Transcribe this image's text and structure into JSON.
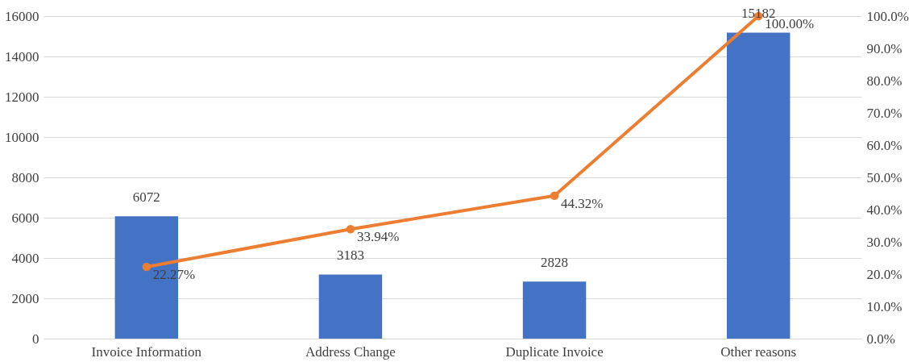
{
  "chart_data": {
    "type": "bar",
    "categories": [
      "Invoice Information",
      "Address Change",
      "Duplicate Invoice",
      "Other reasons"
    ],
    "series": [
      {
        "color": "#4472c4",
        "values": [
          6072,
          3183,
          2828,
          15182
        ],
        "value_labels": [
          "6072",
          "3183",
          "2828",
          "15182"
        ]
      },
      {
        "type": "line",
        "axis": "y2",
        "color": "#ed7d31",
        "marker": "circle",
        "values": [
          22.27,
          33.94,
          44.32,
          100.0
        ],
        "value_labels": [
          "22.27%",
          "33.94%",
          "44.32%",
          "100.00%"
        ]
      }
    ],
    "ylim": [
      0,
      16000
    ],
    "yticks": [
      0,
      2000,
      4000,
      6000,
      8000,
      10000,
      12000,
      14000,
      16000
    ],
    "y2lim": [
      0,
      100
    ],
    "y2ticks": [
      {
        "value": 0,
        "label": "0.0%"
      },
      {
        "value": 10,
        "label": "10.0%"
      },
      {
        "value": 20,
        "label": "20.0%"
      },
      {
        "value": 30,
        "label": "30.0%"
      },
      {
        "value": 40,
        "label": "40.0%"
      },
      {
        "value": 50,
        "label": "50.0%"
      },
      {
        "value": 60,
        "label": "60.0%"
      },
      {
        "value": 70,
        "label": "70.0%"
      },
      {
        "value": 80,
        "label": "80.0%"
      },
      {
        "value": 90,
        "label": "90.0%"
      },
      {
        "value": 100,
        "label": "100.0%"
      }
    ],
    "grid": "y"
  }
}
